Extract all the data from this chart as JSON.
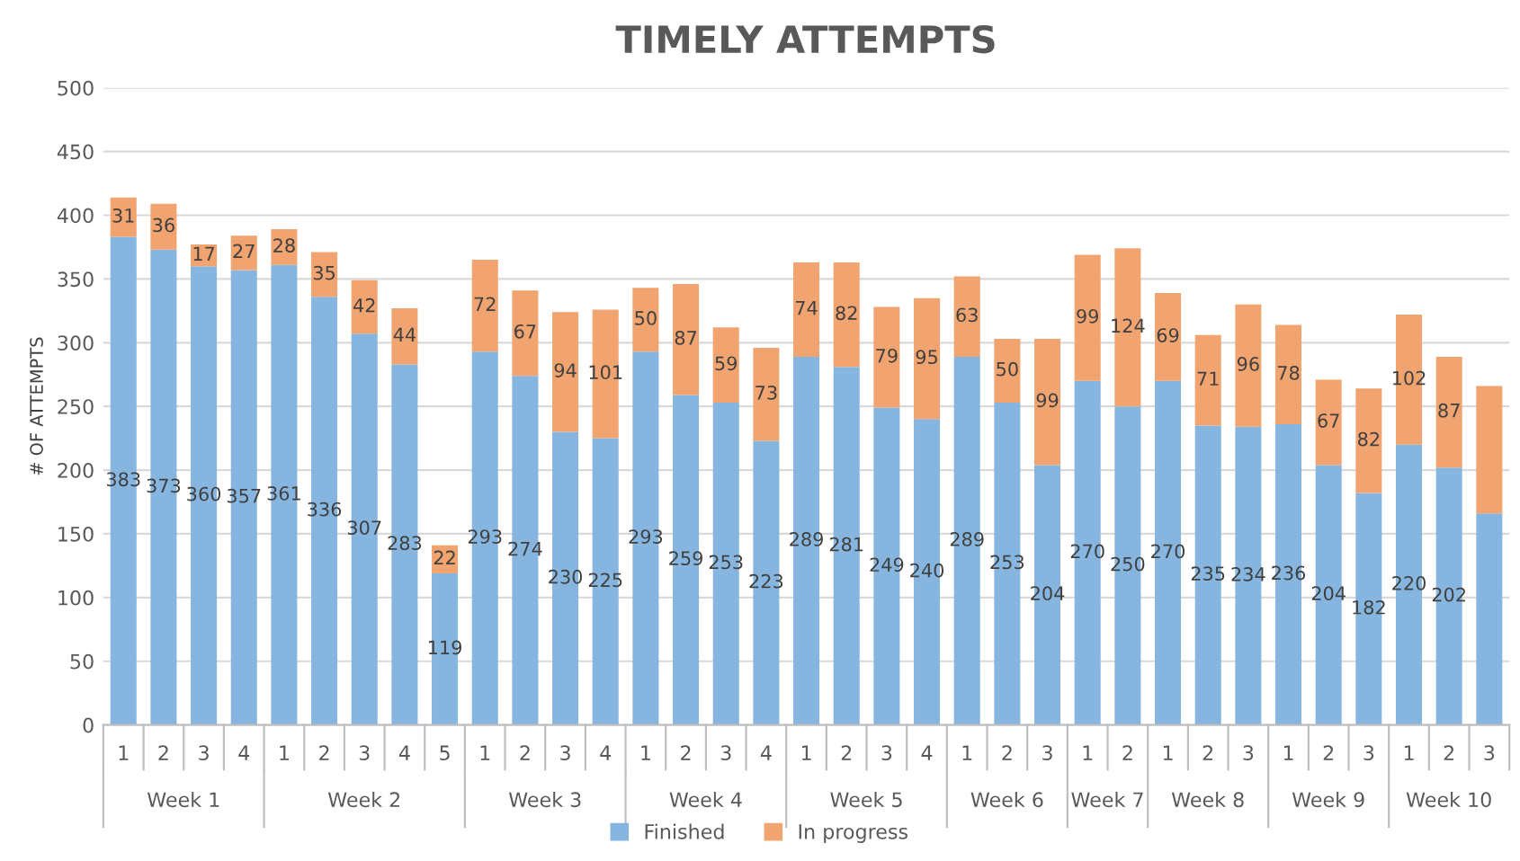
{
  "chart_data": {
    "type": "bar",
    "title": "TIMELY ATTEMPTS",
    "ylabel": "# OF ATTEMPTS",
    "categories": [
      "1",
      "2",
      "3",
      "4",
      "1",
      "2",
      "3",
      "4",
      "5",
      "1",
      "2",
      "3",
      "4",
      "1",
      "2",
      "3",
      "4",
      "1",
      "2",
      "3",
      "4",
      "1",
      "2",
      "3",
      "1",
      "2",
      "1",
      "2",
      "3",
      "1",
      "2",
      "3",
      "1",
      "2",
      "3"
    ],
    "annotations": [
      "Week 1",
      "Week 2",
      "Week 3",
      "Week 4",
      "Week 5",
      "Week 6",
      "Week 7",
      "Week 8",
      "Week 9",
      "Week 10"
    ],
    "stacked": true,
    "series": [
      {
        "name": "Finished",
        "color": "#86b5df",
        "values": [
          383,
          373,
          360,
          357,
          361,
          336,
          307,
          283,
          119,
          293,
          274,
          230,
          225,
          293,
          259,
          253,
          223,
          289,
          281,
          249,
          240,
          289,
          253,
          204,
          270,
          250,
          270,
          235,
          234,
          236,
          204,
          182,
          220,
          202,
          166
        ],
        "value_labels": [
          "383",
          "373",
          "360",
          "357",
          "361",
          "336",
          "307",
          "283",
          "119",
          "293",
          "274",
          "230",
          "225",
          "293",
          "259",
          "253",
          "223",
          "289",
          "281",
          "249",
          "240",
          "289",
          "253",
          "204",
          "270",
          "250",
          "270",
          "235",
          "234",
          "236",
          "204",
          "182",
          "220",
          "202",
          null
        ]
      },
      {
        "name": "In progress",
        "color": "#f1a46f",
        "values": [
          31,
          36,
          17,
          27,
          28,
          35,
          42,
          44,
          22,
          72,
          67,
          94,
          101,
          50,
          87,
          59,
          73,
          74,
          82,
          79,
          95,
          63,
          50,
          99,
          99,
          124,
          69,
          71,
          96,
          78,
          67,
          82,
          102,
          87,
          100
        ],
        "value_labels": [
          "31",
          "36",
          "17",
          "27",
          "28",
          "35",
          "42",
          "44",
          "22",
          "72",
          "67",
          "94",
          "101",
          "50",
          "87",
          "59",
          "73",
          "74",
          "82",
          "79",
          "95",
          "63",
          "50",
          "99",
          "99",
          "124",
          "69",
          "71",
          "96",
          "78",
          "67",
          "82",
          "102",
          "87",
          null
        ]
      }
    ],
    "ylim": [
      0,
      500
    ],
    "yticks": [
      0,
      50,
      100,
      150,
      200,
      250,
      300,
      350,
      400,
      450,
      500
    ],
    "grid": "y",
    "legend": "bottom"
  }
}
